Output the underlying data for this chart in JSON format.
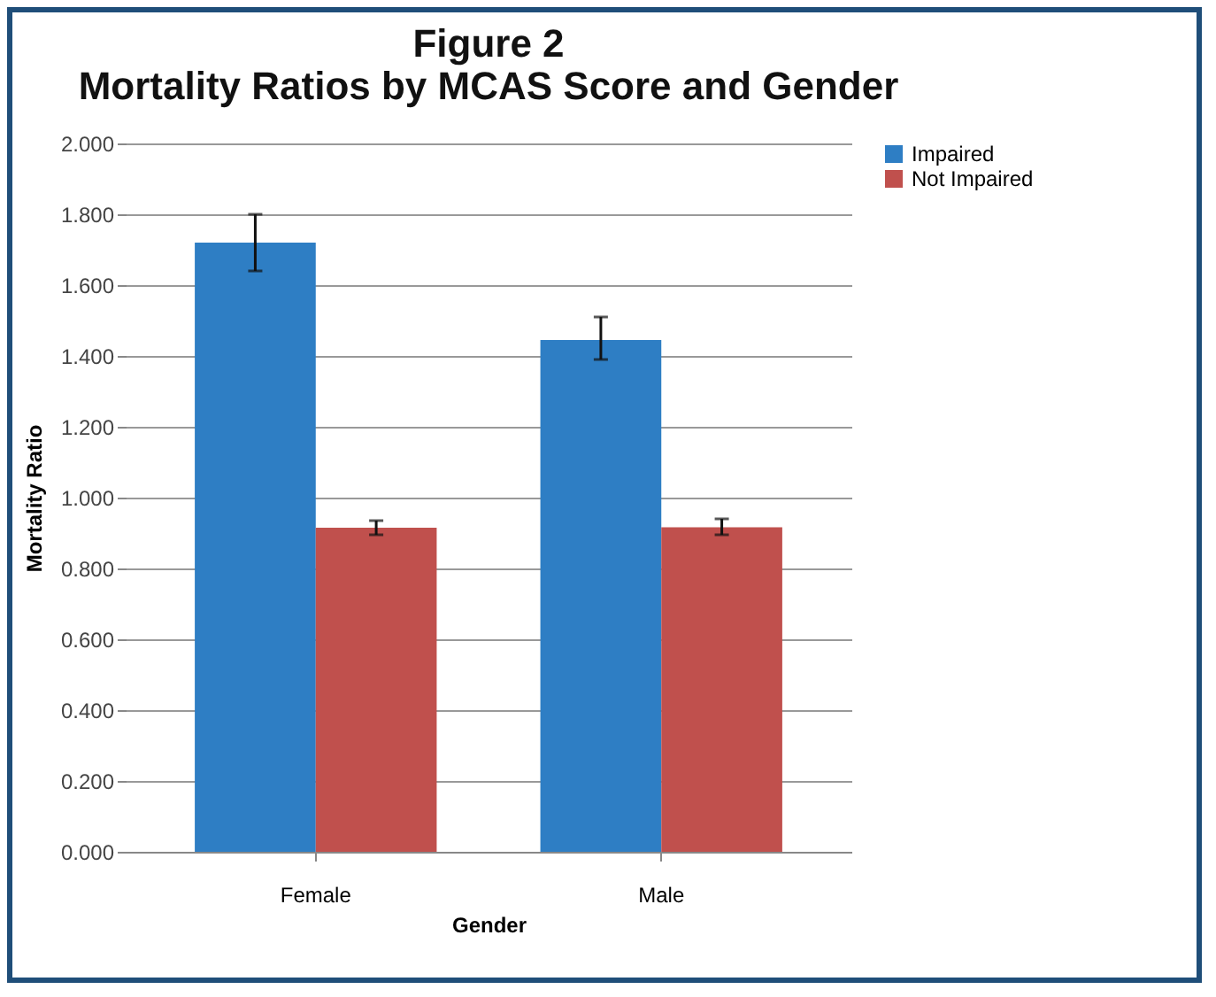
{
  "chart_data": {
    "type": "bar",
    "title": [
      "Figure 2",
      "Mortality Ratios by MCAS Score and Gender"
    ],
    "xlabel": "Gender",
    "ylabel": "Mortality Ratio",
    "categories": [
      "Female",
      "Male"
    ],
    "series": [
      {
        "name": "Impaired",
        "color": "#2e7ec4",
        "values": [
          1.72,
          1.445
        ],
        "errors": [
          [
            1.64,
            1.8
          ],
          [
            1.39,
            1.51
          ]
        ]
      },
      {
        "name": "Not Impaired",
        "color": "#c0504d",
        "values": [
          0.915,
          0.916
        ],
        "errors": [
          [
            0.895,
            0.935
          ],
          [
            0.895,
            0.94
          ]
        ]
      }
    ],
    "ylim": [
      0,
      2
    ],
    "yticks": [
      {
        "value": 0,
        "label": "0.000"
      },
      {
        "value": 0.2,
        "label": "0.200"
      },
      {
        "value": 0.4,
        "label": "0.400"
      },
      {
        "value": 0.6,
        "label": "0.600"
      },
      {
        "value": 0.8,
        "label": "0.800"
      },
      {
        "value": 1,
        "label": "1.000"
      },
      {
        "value": 1.2,
        "label": "1.200"
      },
      {
        "value": 1.4,
        "label": "1.400"
      },
      {
        "value": 1.6,
        "label": "1.600"
      },
      {
        "value": 1.8,
        "label": "1.800"
      },
      {
        "value": 2,
        "label": "2.000"
      }
    ],
    "grid": "y",
    "legend": "right"
  }
}
